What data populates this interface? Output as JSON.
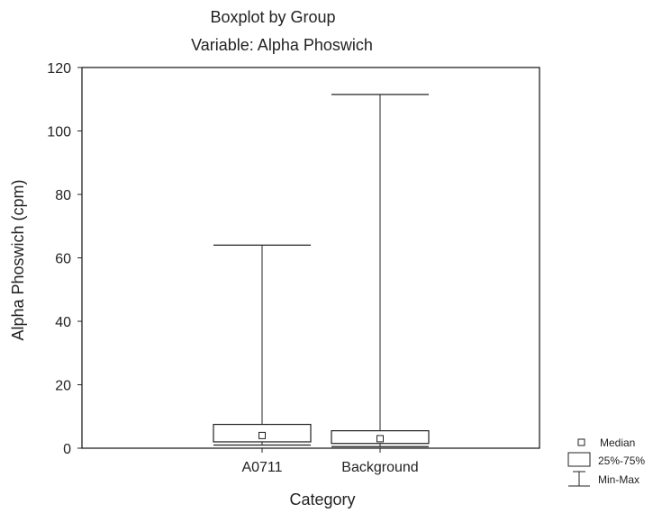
{
  "chart_data": {
    "type": "boxplot",
    "title": "Boxplot by Group",
    "subtitle": "Variable: Alpha Phoswich",
    "xlabel": "Category",
    "ylabel": "Alpha Phoswich (cpm)",
    "ylim": [
      0,
      120
    ],
    "yticks": [
      0,
      20,
      40,
      60,
      80,
      100,
      120
    ],
    "categories": [
      "A0711",
      "Background"
    ],
    "boxes": [
      {
        "category": "A0711",
        "min": 1,
        "q1": 2,
        "median": 4,
        "q3": 7.5,
        "max": 64
      },
      {
        "category": "Background",
        "min": 0.5,
        "q1": 1.5,
        "median": 3,
        "q3": 5.5,
        "max": 111.5
      }
    ],
    "legend": {
      "placement": "bottom-right",
      "items": [
        "Median",
        "25%-75%",
        "Min-Max"
      ]
    },
    "grid": false
  },
  "colors": {
    "line": "#222222",
    "background": "#ffffff"
  }
}
